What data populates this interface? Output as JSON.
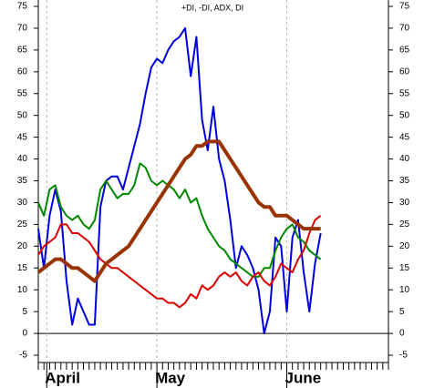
{
  "chart_data": {
    "type": "line",
    "title": "+DI, -DI, ADX, DI",
    "x": [
      0,
      1,
      2,
      3,
      4,
      5,
      6,
      7,
      8,
      9,
      10,
      11,
      12,
      13,
      14,
      15,
      16,
      17,
      18,
      19,
      20,
      21,
      22,
      23,
      24,
      25,
      26,
      27,
      28,
      29,
      30,
      31,
      32,
      33,
      34,
      35,
      36,
      37,
      38,
      39,
      40,
      41,
      42,
      43,
      44,
      45,
      46,
      47,
      48,
      49,
      50
    ],
    "xlim": [
      0,
      62
    ],
    "xticks": [
      {
        "value": 1.5,
        "label": "April"
      },
      {
        "value": 21,
        "label": "May"
      },
      {
        "value": 44,
        "label": "June"
      }
    ],
    "ylim": [
      -5,
      75
    ],
    "yticks": [
      -5,
      0,
      5,
      10,
      15,
      20,
      25,
      30,
      35,
      40,
      45,
      50,
      55,
      60,
      65,
      70,
      75
    ],
    "series": [
      {
        "color": "#0000dd",
        "width": 2,
        "values": [
          24,
          15,
          27,
          33,
          28,
          12,
          2,
          8,
          5,
          2,
          2,
          29,
          35,
          36,
          36,
          33,
          38,
          43,
          48,
          55,
          61,
          63,
          62,
          65,
          67,
          68,
          70,
          59,
          68,
          49,
          42,
          52,
          40,
          35,
          26,
          15,
          20,
          18,
          15,
          10,
          0,
          5,
          22,
          20,
          5,
          22,
          26,
          14,
          5,
          16,
          23
        ]
      },
      {
        "color": "#008800",
        "width": 2,
        "values": [
          30,
          27,
          33,
          34,
          29,
          27,
          26,
          27,
          25,
          24,
          26,
          33,
          35,
          33,
          31,
          32,
          32,
          34,
          39,
          38,
          35,
          34,
          35,
          34,
          33,
          31,
          33,
          30,
          31,
          27,
          24,
          22,
          20,
          19,
          17,
          16,
          15,
          14,
          13,
          13,
          15,
          15,
          19,
          22,
          24,
          25,
          22,
          21,
          19,
          18,
          17
        ]
      },
      {
        "color": "#dd0000",
        "width": 2,
        "values": [
          18,
          20,
          21,
          22,
          25,
          25,
          23,
          23,
          22,
          21,
          19,
          17,
          16,
          15,
          15,
          14,
          13,
          12,
          11,
          10,
          9,
          8,
          8,
          7,
          7,
          6,
          7,
          9,
          8,
          11,
          10,
          11,
          13,
          14,
          13,
          14,
          12,
          11,
          13,
          14,
          12,
          11,
          13,
          16,
          15,
          14,
          17,
          19,
          23,
          26,
          27
        ]
      },
      {
        "color": "#993300",
        "width": 4,
        "values": [
          14,
          15,
          16,
          17,
          17,
          16,
          15,
          15,
          14,
          13,
          12,
          14,
          16,
          17,
          18,
          19,
          20,
          22,
          24,
          26,
          28,
          30,
          32,
          34,
          36,
          38,
          40,
          41,
          43,
          43,
          44,
          44,
          44,
          42,
          40,
          38,
          36,
          34,
          32,
          30,
          29,
          29,
          27,
          27,
          27,
          26,
          25,
          24,
          24,
          24,
          24
        ]
      }
    ]
  }
}
